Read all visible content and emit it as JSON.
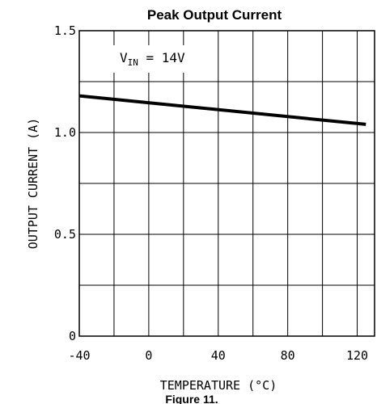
{
  "chart_data": {
    "type": "line",
    "title": "Peak Output Current",
    "xlabel": "TEMPERATURE (°C)",
    "ylabel": "OUTPUT CURRENT (A)",
    "xlim": [
      -40,
      130
    ],
    "ylim": [
      0,
      1.5
    ],
    "x_ticks": [
      -40,
      0,
      40,
      80,
      120
    ],
    "x_tick_labels": [
      "-40",
      "0",
      "40",
      "80",
      "120"
    ],
    "y_ticks": [
      0,
      0.5,
      1.0,
      1.5
    ],
    "y_tick_labels": [
      "0",
      "0.5",
      "1.0",
      "1.5"
    ],
    "x_grid": [
      -40,
      -20,
      0,
      20,
      40,
      60,
      80,
      100,
      120
    ],
    "y_grid": [
      0,
      0.25,
      0.5,
      0.75,
      1.0,
      1.25,
      1.5
    ],
    "grid": true,
    "annotation": {
      "main": "V",
      "sub": "IN",
      "rest": " = 14V"
    },
    "series": [
      {
        "x": [
          -40,
          125
        ],
        "values": [
          1.18,
          1.04
        ]
      }
    ],
    "figure_caption": "Figure 11."
  }
}
